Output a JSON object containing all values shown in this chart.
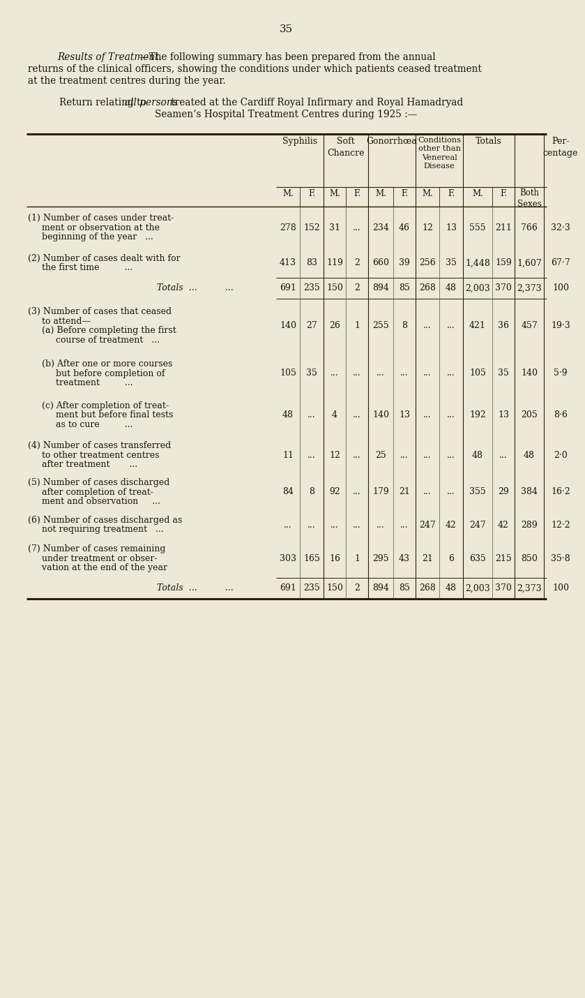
{
  "page_number": "35",
  "bg_color": "#ede8d8",
  "intro_italic": "Results of Treatment.",
  "intro_dash": "—",
  "intro_rest": "The following summary has been prepared from the annual",
  "intro_line2": "returns of the clinical officers, showing the conditions under which patients ceased treatment",
  "intro_line3": "at the treatment centres during the year.",
  "sub1_pre": "Return relating to ",
  "sub1_italic": "all persons",
  "sub1_post": " treated at the Cardiff Royal Infirmary and Royal Hamadryad",
  "sub2": "Seamen’s Hospital Treatment Centres during 1925 :—",
  "rows": [
    {
      "label_lines": [
        "(1) Number of cases under treat-",
        "     ment or observation at the",
        "     beginning of the year   ..."
      ],
      "values": [
        "278",
        "152",
        "31",
        "...",
        "234",
        "46",
        "12",
        "13",
        "555",
        "211",
        "766",
        "32·3"
      ]
    },
    {
      "label_lines": [
        "(2) Number of cases dealt with for",
        "     the first time         ..."
      ],
      "values": [
        "413",
        "83",
        "119",
        "2",
        "660",
        "39",
        "256",
        "35",
        "1,448",
        "159",
        "1,607",
        "67·7"
      ]
    },
    {
      "label_type": "totals",
      "label_lines": [
        "Totals  ...          ..."
      ],
      "values": [
        "691",
        "235",
        "150",
        "2",
        "894",
        "85",
        "268",
        "48",
        "2,003",
        "370",
        "2,373",
        "100"
      ]
    },
    {
      "label_lines": [
        "(3) Number of cases that ceased",
        "     to attend—",
        "     (a) Before completing the first",
        "          course of treatment   ..."
      ],
      "values": [
        "140",
        "27",
        "26",
        "1",
        "255",
        "8",
        "...",
        "...",
        "421",
        "36",
        "457",
        "19·3"
      ]
    },
    {
      "label_lines": [
        "     (b) After one or more courses",
        "          but before completion of",
        "          treatment         ..."
      ],
      "values": [
        "105",
        "35",
        "...",
        "...",
        "...",
        "...",
        "...",
        "...",
        "105",
        "35",
        "140",
        "5·9"
      ]
    },
    {
      "label_lines": [
        "     (c) After completion of treat-",
        "          ment but before final tests",
        "          as to cure         ..."
      ],
      "values": [
        "48",
        "...",
        "4",
        "...",
        "140",
        "13",
        "...",
        "...",
        "192",
        "13",
        "205",
        "8·6"
      ]
    },
    {
      "label_lines": [
        "(4) Number of cases transferred",
        "     to other treatment centres",
        "     after treatment       ..."
      ],
      "values": [
        "11",
        "...",
        "12",
        "...",
        "25",
        "...",
        "...",
        "...",
        "48",
        "...",
        "48",
        "2·0"
      ]
    },
    {
      "label_lines": [
        "(5) Number of cases discharged",
        "     after completion of treat-",
        "     ment and observation     ..."
      ],
      "values": [
        "84",
        "8",
        "92",
        "...",
        "179",
        "21",
        "...",
        "...",
        "355",
        "29",
        "384",
        "16·2"
      ]
    },
    {
      "label_lines": [
        "(6) Number of cases discharged as",
        "     not requiring treatment   ..."
      ],
      "values": [
        "...",
        "...",
        "...",
        "...",
        "...",
        "...",
        "247",
        "42",
        "247",
        "42",
        "289",
        "12·2"
      ]
    },
    {
      "label_lines": [
        "(7) Number of cases remaining",
        "     under treatment or obser-",
        "     vation at the end of the year"
      ],
      "values": [
        "303",
        "165",
        "16",
        "1",
        "295",
        "43",
        "21",
        "6",
        "635",
        "215",
        "850",
        "35·8"
      ]
    },
    {
      "label_type": "totals",
      "label_lines": [
        "Totals  ...          ..."
      ],
      "values": [
        "691",
        "235",
        "150",
        "2",
        "894",
        "85",
        "268",
        "48",
        "2,003",
        "370",
        "2,373",
        "100"
      ]
    }
  ]
}
